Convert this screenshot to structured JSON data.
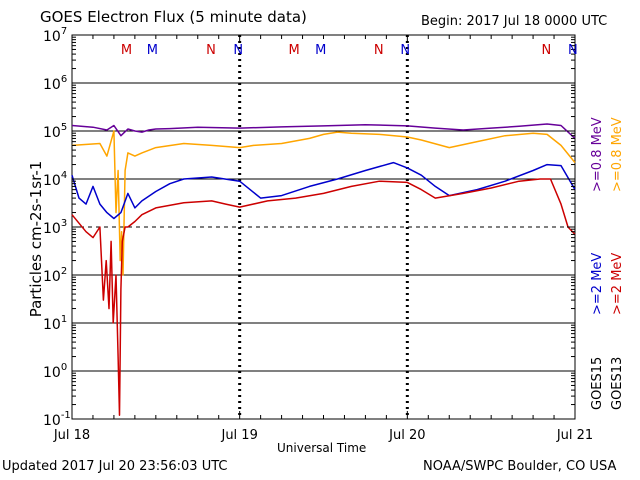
{
  "header": {
    "title": "GOES Electron Flux (5 minute data)",
    "begin": "Begin: 2017 Jul 18 0000 UTC"
  },
  "footer": {
    "updated": "Updated 2017 Jul 20 23:56:03 UTC",
    "credit": "NOAA/SWPC Boulder, CO USA"
  },
  "legend": {
    "goes15": "GOES15",
    "goes13": "GOES13",
    "goes15_color": "#000000",
    "goes13_color": "#000000"
  },
  "chart_data": {
    "type": "line",
    "xlabel": "Universal Time",
    "ylabel_html": "Particles cm<tspan dy='-6' font-size='10'>-2</tspan><tspan dy='6'>s</tspan><tspan dy='-6' font-size='10'>-1</tspan><tspan dy='6'>sr</tspan><tspan dy='-6' font-size='10'>-1</tspan>",
    "ylabel": "Particles cm-2s-1sr-1",
    "y_scale": "log",
    "ylim": [
      0.1,
      10000000
    ],
    "y_ticks": [
      {
        "value": 0.1,
        "base": "10",
        "exp": "-1"
      },
      {
        "value": 1,
        "base": "10",
        "exp": "0"
      },
      {
        "value": 10,
        "base": "10",
        "exp": "1"
      },
      {
        "value": 100,
        "base": "10",
        "exp": "2"
      },
      {
        "value": 1000,
        "base": "10",
        "exp": "3"
      },
      {
        "value": 10000,
        "base": "10",
        "exp": "4"
      },
      {
        "value": 100000,
        "base": "10",
        "exp": "5"
      },
      {
        "value": 1000000,
        "base": "10",
        "exp": "6"
      },
      {
        "value": 10000000,
        "base": "10",
        "exp": "7"
      }
    ],
    "x_unit": "hours since 2017 Jul 18 0000 UTC",
    "xlim": [
      0,
      72
    ],
    "x_ticks": [
      {
        "value": 0,
        "label": "Jul 18"
      },
      {
        "value": 24,
        "label": "Jul 19"
      },
      {
        "value": 48,
        "label": "Jul 20"
      },
      {
        "value": 72,
        "label": "Jul 21"
      }
    ],
    "threshold": {
      "value": 1000
    },
    "grid": true,
    "markers": [
      {
        "x": 7.8,
        "label": "M",
        "color": "#cc0000"
      },
      {
        "x": 11.5,
        "label": "M",
        "color": "#0000cc"
      },
      {
        "x": 19.9,
        "label": "N",
        "color": "#cc0000"
      },
      {
        "x": 23.8,
        "label": "N",
        "color": "#0000cc"
      },
      {
        "x": 31.8,
        "label": "M",
        "color": "#cc0000"
      },
      {
        "x": 35.6,
        "label": "M",
        "color": "#0000cc"
      },
      {
        "x": 43.9,
        "label": "N",
        "color": "#cc0000"
      },
      {
        "x": 47.7,
        "label": "N",
        "color": "#0000cc"
      },
      {
        "x": 67.9,
        "label": "N",
        "color": "#cc0000"
      },
      {
        "x": 71.7,
        "label": "N",
        "color": "#0000cc"
      }
    ],
    "series": [
      {
        "name": ">=0.8 MeV",
        "sat": "GOES15",
        "color": "#660099",
        "points": [
          [
            0,
            130000
          ],
          [
            3,
            120000
          ],
          [
            5,
            105000
          ],
          [
            6,
            130000
          ],
          [
            7,
            80000
          ],
          [
            8,
            110000
          ],
          [
            9,
            100000
          ],
          [
            10,
            95000
          ],
          [
            11,
            105000
          ],
          [
            12,
            110000
          ],
          [
            14,
            112000
          ],
          [
            18,
            120000
          ],
          [
            24,
            115000
          ],
          [
            30,
            122000
          ],
          [
            36,
            128000
          ],
          [
            42,
            135000
          ],
          [
            48,
            128000
          ],
          [
            52,
            115000
          ],
          [
            56,
            105000
          ],
          [
            60,
            115000
          ],
          [
            64,
            125000
          ],
          [
            68,
            140000
          ],
          [
            70,
            130000
          ],
          [
            72,
            70000
          ]
        ]
      },
      {
        "name": ">=0.8 MeV",
        "sat": "GOES13",
        "color": "#ffa500",
        "points": [
          [
            0,
            50000
          ],
          [
            4,
            55000
          ],
          [
            5,
            30000
          ],
          [
            6,
            100000
          ],
          [
            6.3,
            2000
          ],
          [
            6.6,
            15000
          ],
          [
            6.9,
            200
          ],
          [
            7.1,
            800
          ],
          [
            7.3,
            100
          ],
          [
            7.6,
            15000
          ],
          [
            8,
            35000
          ],
          [
            9,
            30000
          ],
          [
            10,
            35000
          ],
          [
            12,
            45000
          ],
          [
            16,
            55000
          ],
          [
            20,
            50000
          ],
          [
            24,
            45000
          ],
          [
            26,
            50000
          ],
          [
            30,
            55000
          ],
          [
            34,
            70000
          ],
          [
            36,
            85000
          ],
          [
            38,
            95000
          ],
          [
            40,
            90000
          ],
          [
            44,
            85000
          ],
          [
            48,
            75000
          ],
          [
            50,
            65000
          ],
          [
            54,
            45000
          ],
          [
            58,
            60000
          ],
          [
            62,
            80000
          ],
          [
            66,
            90000
          ],
          [
            68,
            85000
          ],
          [
            70,
            50000
          ],
          [
            72,
            22000
          ]
        ]
      },
      {
        "name": ">=2 MeV",
        "sat": "GOES15",
        "color": "#0000cc",
        "points": [
          [
            0,
            12000
          ],
          [
            1,
            4000
          ],
          [
            2,
            3000
          ],
          [
            3,
            7000
          ],
          [
            4,
            3000
          ],
          [
            5,
            2000
          ],
          [
            6,
            1500
          ],
          [
            7,
            2000
          ],
          [
            8,
            5000
          ],
          [
            9,
            2500
          ],
          [
            10,
            3500
          ],
          [
            12,
            5500
          ],
          [
            14,
            8000
          ],
          [
            16,
            10000
          ],
          [
            20,
            11000
          ],
          [
            24,
            9000
          ],
          [
            27,
            4000
          ],
          [
            30,
            4500
          ],
          [
            34,
            7000
          ],
          [
            38,
            10000
          ],
          [
            42,
            15000
          ],
          [
            46,
            22000
          ],
          [
            48,
            17000
          ],
          [
            50,
            12000
          ],
          [
            52,
            7000
          ],
          [
            54,
            4500
          ],
          [
            58,
            6000
          ],
          [
            62,
            9000
          ],
          [
            66,
            15000
          ],
          [
            68,
            20000
          ],
          [
            70,
            19000
          ],
          [
            72,
            6000
          ]
        ]
      },
      {
        "name": ">=2 MeV",
        "sat": "GOES13",
        "color": "#cc0000",
        "points": [
          [
            0,
            1800
          ],
          [
            1,
            1200
          ],
          [
            2,
            800
          ],
          [
            3,
            600
          ],
          [
            4,
            1000
          ],
          [
            4.5,
            30
          ],
          [
            4.9,
            200
          ],
          [
            5.3,
            20
          ],
          [
            5.6,
            500
          ],
          [
            5.9,
            10
          ],
          [
            6.3,
            100
          ],
          [
            6.6,
            2
          ],
          [
            6.8,
            0.12
          ],
          [
            7.0,
            50
          ],
          [
            7.2,
            500
          ],
          [
            7.6,
            1000
          ],
          [
            8,
            1000
          ],
          [
            9,
            1300
          ],
          [
            10,
            1800
          ],
          [
            12,
            2500
          ],
          [
            16,
            3200
          ],
          [
            20,
            3500
          ],
          [
            22,
            3000
          ],
          [
            24,
            2600
          ],
          [
            28,
            3500
          ],
          [
            32,
            4000
          ],
          [
            36,
            5000
          ],
          [
            40,
            7000
          ],
          [
            44,
            9000
          ],
          [
            48,
            8500
          ],
          [
            50,
            6000
          ],
          [
            52,
            4000
          ],
          [
            56,
            5000
          ],
          [
            60,
            6500
          ],
          [
            64,
            9000
          ],
          [
            67,
            10000
          ],
          [
            68.5,
            10000
          ],
          [
            70,
            3000
          ],
          [
            71,
            1000
          ],
          [
            72,
            700
          ]
        ]
      }
    ],
    "right_labels": [
      {
        "text": ">=0.8 MeV",
        "color": "#660099"
      },
      {
        "text": ">=0.8 MeV",
        "color": "#ffa500"
      },
      {
        "text": ">=2 MeV",
        "color": "#0000cc"
      },
      {
        "text": ">=2 MeV",
        "color": "#cc0000"
      }
    ]
  }
}
